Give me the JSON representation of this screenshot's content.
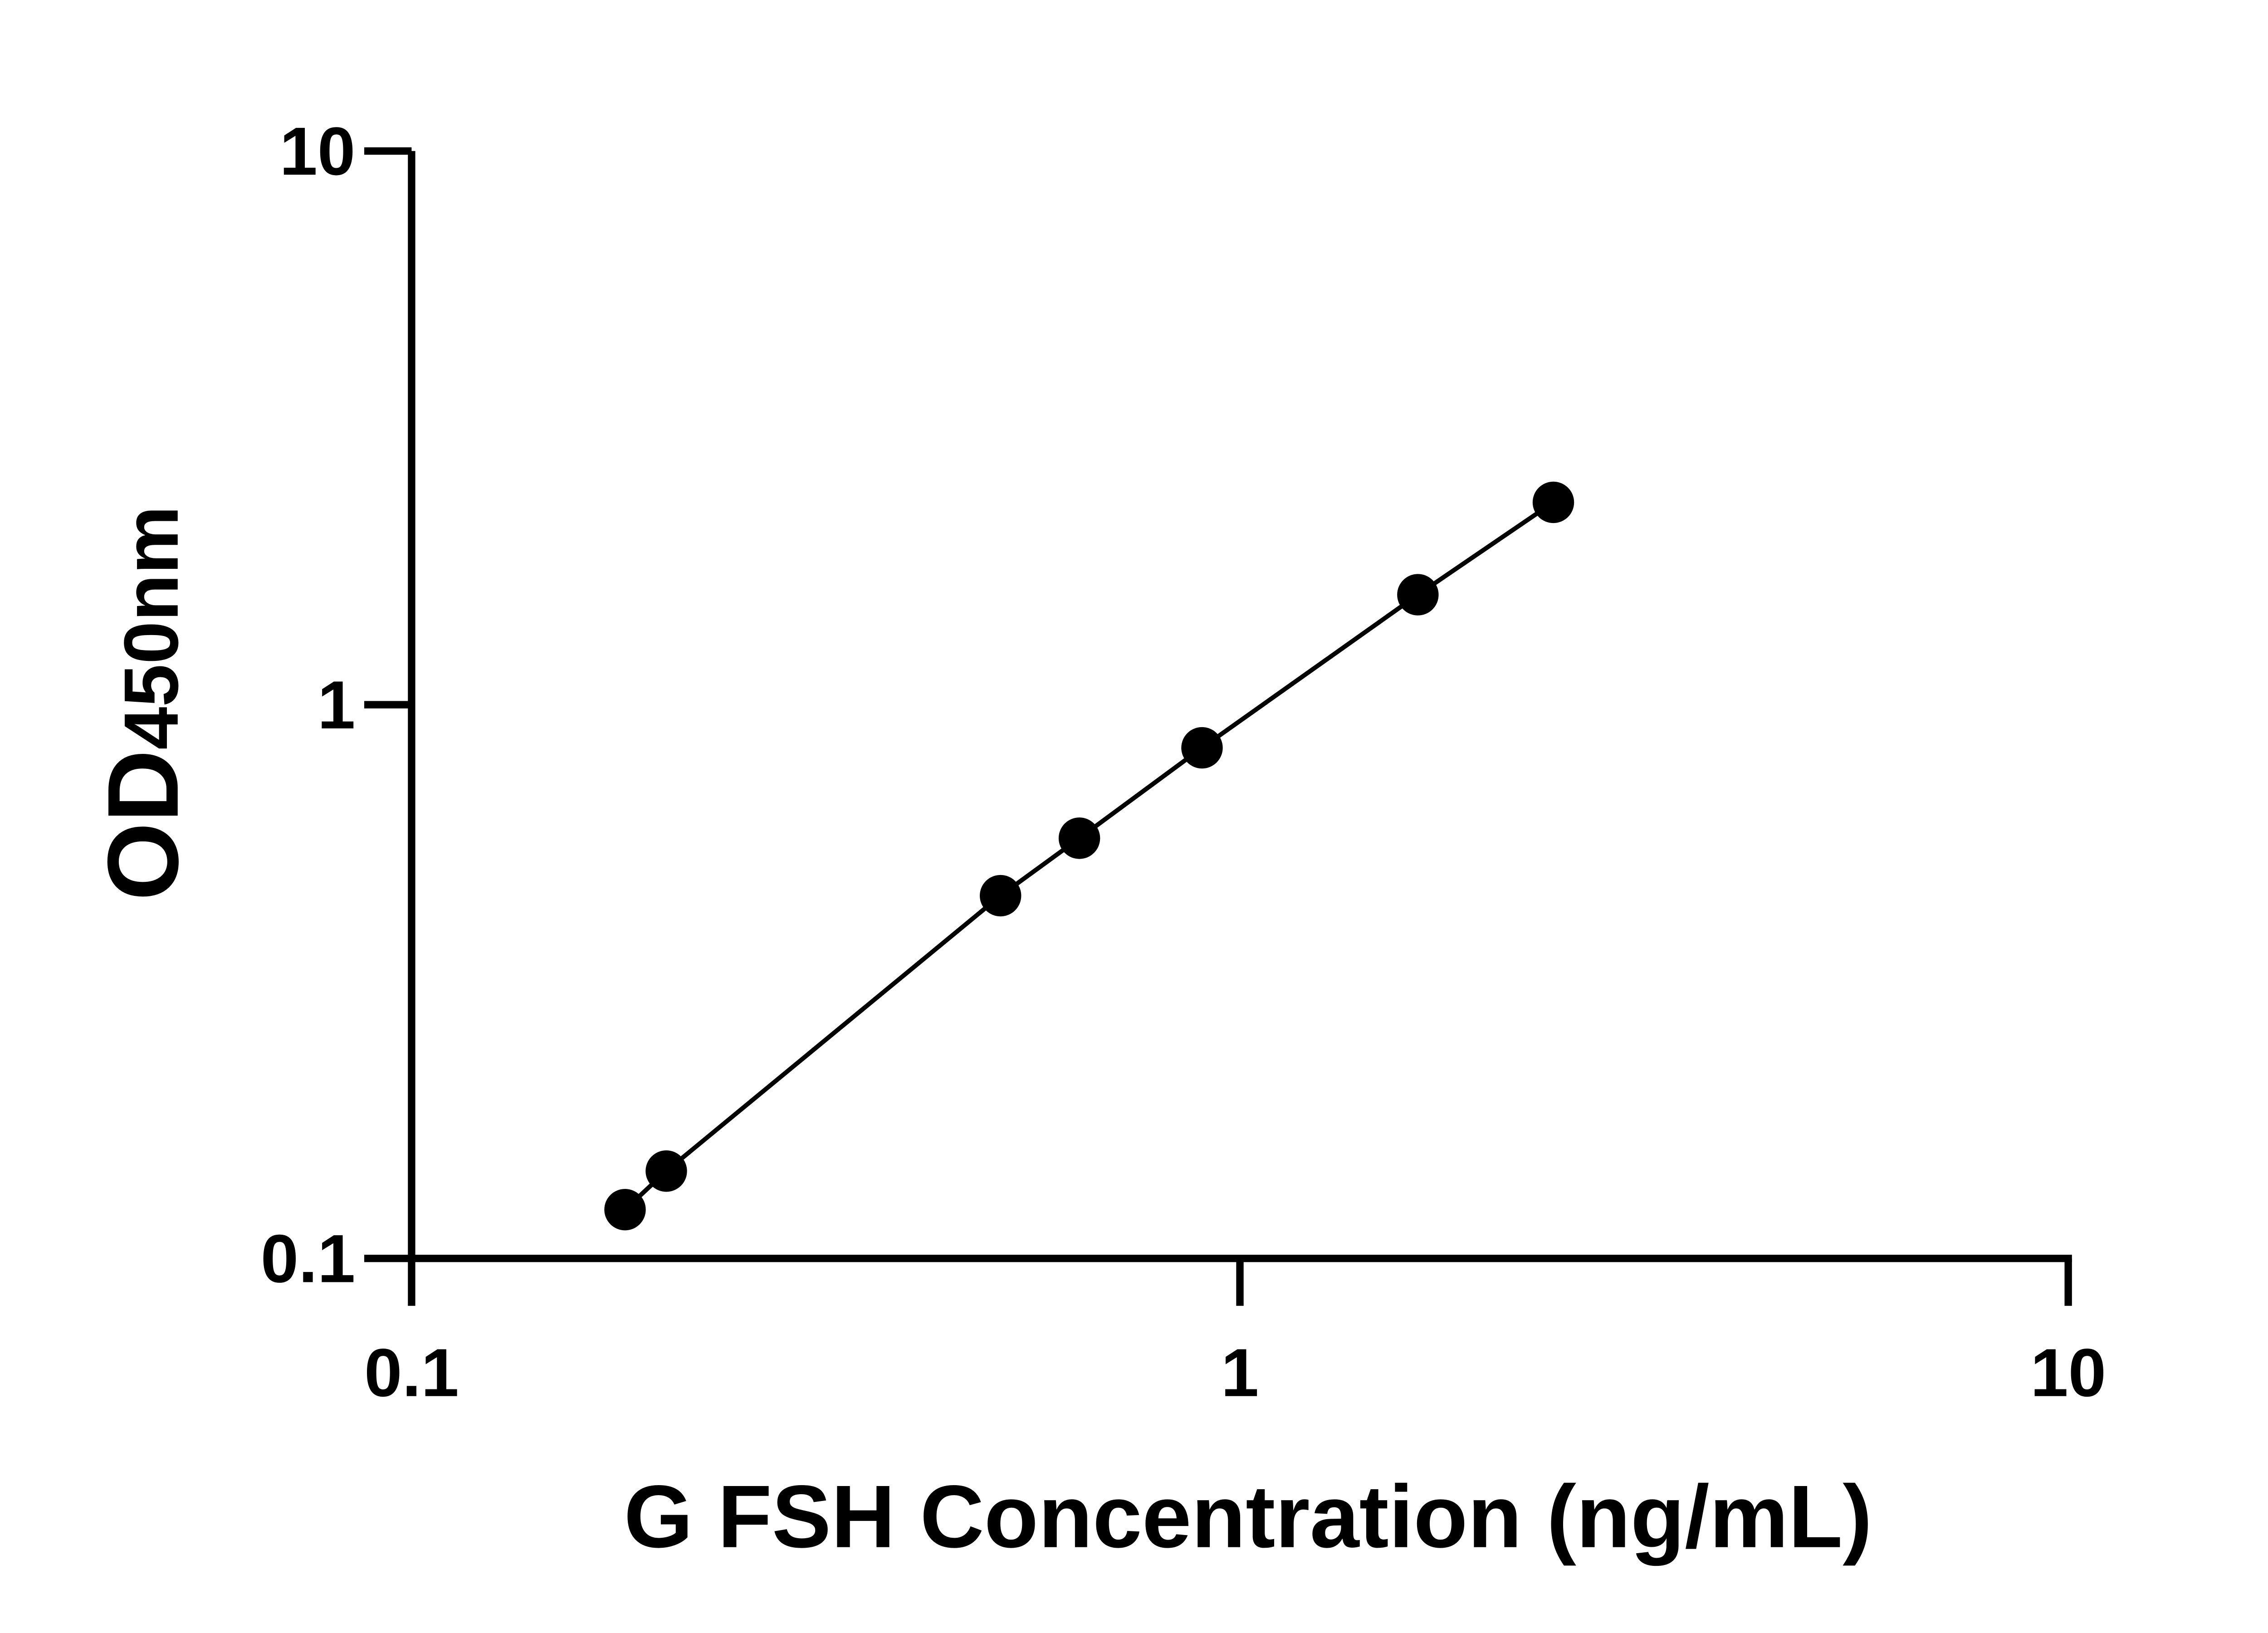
{
  "chart_data": {
    "type": "line",
    "markers": true,
    "xlabel": "G FSH Concentration (ng/mL)",
    "ylabel": "OD",
    "ylabel_subscript": "450nm",
    "xscale": "log",
    "yscale": "log",
    "xlim": [
      0.1,
      10
    ],
    "ylim": [
      0.1,
      10
    ],
    "xticks": [
      0.1,
      1,
      10
    ],
    "yticks": [
      0.1,
      1,
      10
    ],
    "series": [
      {
        "color": "#000000",
        "x": [
          0.181,
          0.203,
          0.514,
          0.64,
          0.9,
          1.64,
          2.39
        ],
        "values": [
          0.1225,
          0.1438,
          0.452,
          0.574,
          0.836,
          1.58,
          2.32
        ]
      }
    ]
  }
}
